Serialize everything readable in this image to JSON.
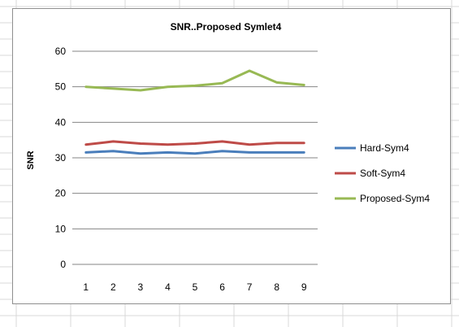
{
  "chart_data": {
    "type": "line",
    "title": "SNR..Proposed Symlet4",
    "xlabel": "",
    "ylabel": "SNR",
    "categories": [
      "1",
      "2",
      "3",
      "4",
      "5",
      "6",
      "7",
      "8",
      "9"
    ],
    "ylim": [
      0,
      60
    ],
    "yticks": [
      "0",
      "10",
      "20",
      "30",
      "40",
      "50",
      "60"
    ],
    "grid": true,
    "legend_position": "right",
    "series": [
      {
        "name": "Hard-Sym4",
        "color": "#4a7ebb",
        "values": [
          31.5,
          31.9,
          31.2,
          31.5,
          31.2,
          31.9,
          31.5,
          31.5,
          31.5
        ]
      },
      {
        "name": "Soft-Sym4",
        "color": "#be4b48",
        "values": [
          33.7,
          34.6,
          34.0,
          33.7,
          34.0,
          34.6,
          33.7,
          34.2,
          34.2
        ]
      },
      {
        "name": "Proposed-Sym4",
        "color": "#98b954",
        "values": [
          50.0,
          49.5,
          49.0,
          50.0,
          50.3,
          51.0,
          54.5,
          51.2,
          50.5
        ]
      }
    ]
  }
}
